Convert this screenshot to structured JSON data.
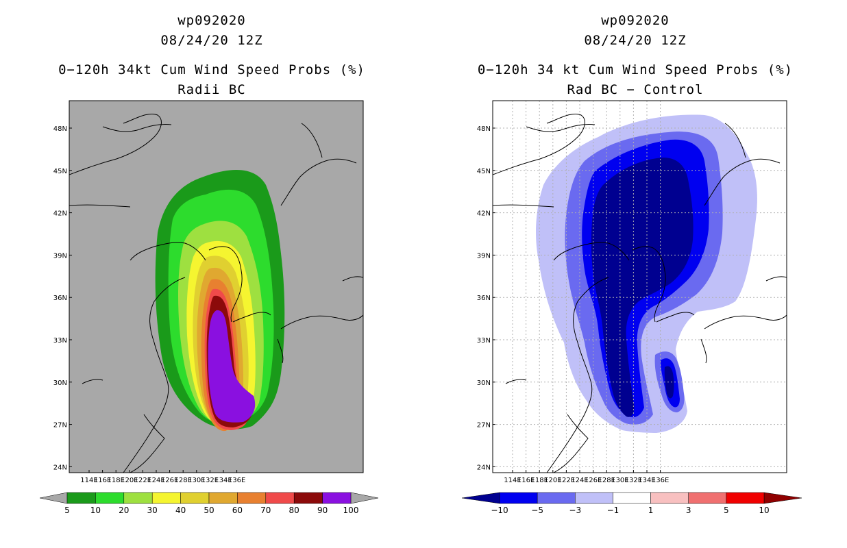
{
  "panels": [
    {
      "id": "left",
      "storm_id": "wp092020",
      "datetime": "08/24/20 12Z",
      "title": "0−120h 34kt Cum Wind Speed Probs (%)",
      "subtitle": "Radii BC",
      "background": "#a8a8a8",
      "colorbar": {
        "labels": [
          "5",
          "10",
          "20",
          "30",
          "40",
          "50",
          "60",
          "70",
          "80",
          "90",
          "100"
        ],
        "colors": [
          "#1a9a1a",
          "#2ddc2d",
          "#9ee040",
          "#f5f530",
          "#e0d030",
          "#e0a830",
          "#e88030",
          "#f04a4a",
          "#8c0a0a",
          "#8a10e0"
        ],
        "end_colors": [
          "#a8a8a8",
          "#a8a8a8"
        ]
      }
    },
    {
      "id": "right",
      "storm_id": "wp092020",
      "datetime": "08/24/20 12Z",
      "title": "0−120h 34 kt Cum Wind Speed Probs (%)",
      "subtitle": "Rad BC − Control",
      "background": "#ffffff",
      "colorbar": {
        "labels": [
          "−10",
          "−5",
          "−3",
          "−1",
          "1",
          "3",
          "5",
          "10"
        ],
        "colors": [
          "#0000f0",
          "#6a6af0",
          "#c0c0f8",
          "#ffffff",
          "#f8c0c0",
          "#f07070",
          "#f00000"
        ],
        "end_colors": [
          "#000090",
          "#900000"
        ]
      }
    }
  ],
  "map": {
    "lon_labels": [
      "114E",
      "116E",
      "118E",
      "120E",
      "122E",
      "124E",
      "126E",
      "128E",
      "130E",
      "132E",
      "134E",
      "136E"
    ],
    "lat_labels": [
      "48N",
      "45N",
      "42N",
      "39N",
      "36N",
      "33N",
      "30N",
      "27N",
      "24N"
    ]
  },
  "layers": {
    "left_shading": [
      "#1a9a1a",
      "#2ddc2d",
      "#9ee040",
      "#f5f530",
      "#e0d030",
      "#e0a830",
      "#e88030",
      "#f04a4a",
      "#8c0a0a",
      "#8a10e0"
    ],
    "right_shading": [
      "#c0c0f8",
      "#6a6af0",
      "#0000f0",
      "#000090"
    ]
  }
}
